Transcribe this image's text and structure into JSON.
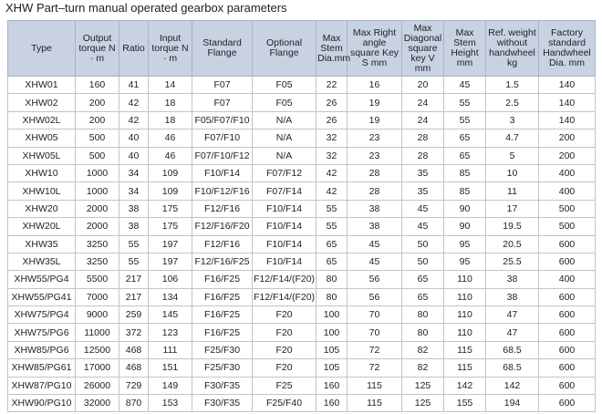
{
  "title": "XHW Part–turn manual operated gearbox parameters",
  "table": {
    "headers": [
      "Type",
      "Output torque N · m",
      "Ratio",
      "Input torque N · m",
      "Standard Flange",
      "Optional Flange",
      "Max Stem Dia.mm",
      "Max Right angle square Key S mm",
      "Max Diagonal square key V mm",
      "Max Stem Height mm",
      "Ref. weight without handwheel kg",
      "Factory standard Handwheel Dia. mm"
    ],
    "rows": [
      [
        "XHW01",
        "160",
        "41",
        "14",
        "F07",
        "F05",
        "22",
        "16",
        "20",
        "45",
        "1.5",
        "140"
      ],
      [
        "XHW02",
        "200",
        "42",
        "18",
        "F07",
        "F05",
        "26",
        "19",
        "24",
        "55",
        "2.5",
        "140"
      ],
      [
        "XHW02L",
        "200",
        "42",
        "18",
        "F05/F07/F10",
        "N/A",
        "26",
        "19",
        "24",
        "55",
        "3",
        "140"
      ],
      [
        "XHW05",
        "500",
        "40",
        "46",
        "F07/F10",
        "N/A",
        "32",
        "23",
        "28",
        "65",
        "4.7",
        "200"
      ],
      [
        "XHW05L",
        "500",
        "40",
        "46",
        "F07/F10/F12",
        "N/A",
        "32",
        "23",
        "28",
        "65",
        "5",
        "200"
      ],
      [
        "XHW10",
        "1000",
        "34",
        "109",
        "F10/F14",
        "F07/F12",
        "42",
        "28",
        "35",
        "85",
        "10",
        "400"
      ],
      [
        "XHW10L",
        "1000",
        "34",
        "109",
        "F10/F12/F16",
        "F07/F14",
        "42",
        "28",
        "35",
        "85",
        "11",
        "400"
      ],
      [
        "XHW20",
        "2000",
        "38",
        "175",
        "F12/F16",
        "F10/F14",
        "55",
        "38",
        "45",
        "90",
        "17",
        "500"
      ],
      [
        "XHW20L",
        "2000",
        "38",
        "175",
        "F12/F16/F20",
        "F10/F14",
        "55",
        "38",
        "45",
        "90",
        "19.5",
        "500"
      ],
      [
        "XHW35",
        "3250",
        "55",
        "197",
        "F12/F16",
        "F10/F14",
        "65",
        "45",
        "50",
        "95",
        "20.5",
        "600"
      ],
      [
        "XHW35L",
        "3250",
        "55",
        "197",
        "F12/F16/F25",
        "F10/F14",
        "65",
        "45",
        "50",
        "95",
        "25.5",
        "600"
      ],
      [
        "XHW55/PG4",
        "5500",
        "217",
        "106",
        "F16/F25",
        "F12/F14/(F20)",
        "80",
        "56",
        "65",
        "110",
        "38",
        "400"
      ],
      [
        "XHW55/PG41",
        "7000",
        "217",
        "134",
        "F16/F25",
        "F12/F14/(F20)",
        "80",
        "56",
        "65",
        "110",
        "38",
        "600"
      ],
      [
        "XHW75/PG4",
        "9000",
        "259",
        "145",
        "F16/F25",
        "F20",
        "100",
        "70",
        "80",
        "110",
        "47",
        "600"
      ],
      [
        "XHW75/PG6",
        "11000",
        "372",
        "123",
        "F16/F25",
        "F20",
        "100",
        "70",
        "80",
        "110",
        "47",
        "600"
      ],
      [
        "XHW85/PG6",
        "12500",
        "468",
        "111",
        "F25/F30",
        "F20",
        "105",
        "72",
        "82",
        "115",
        "68.5",
        "600"
      ],
      [
        "XHW85/PG61",
        "17000",
        "468",
        "151",
        "F25/F30",
        "F20",
        "105",
        "72",
        "82",
        "115",
        "68.5",
        "600"
      ],
      [
        "XHW87/PG10",
        "26000",
        "729",
        "149",
        "F30/F35",
        "F25",
        "160",
        "115",
        "125",
        "142",
        "142",
        "600"
      ],
      [
        "XHW90/PG10",
        "32000",
        "870",
        "153",
        "F30/F35",
        "F25/F40",
        "160",
        "115",
        "125",
        "155",
        "194",
        "600"
      ]
    ]
  }
}
